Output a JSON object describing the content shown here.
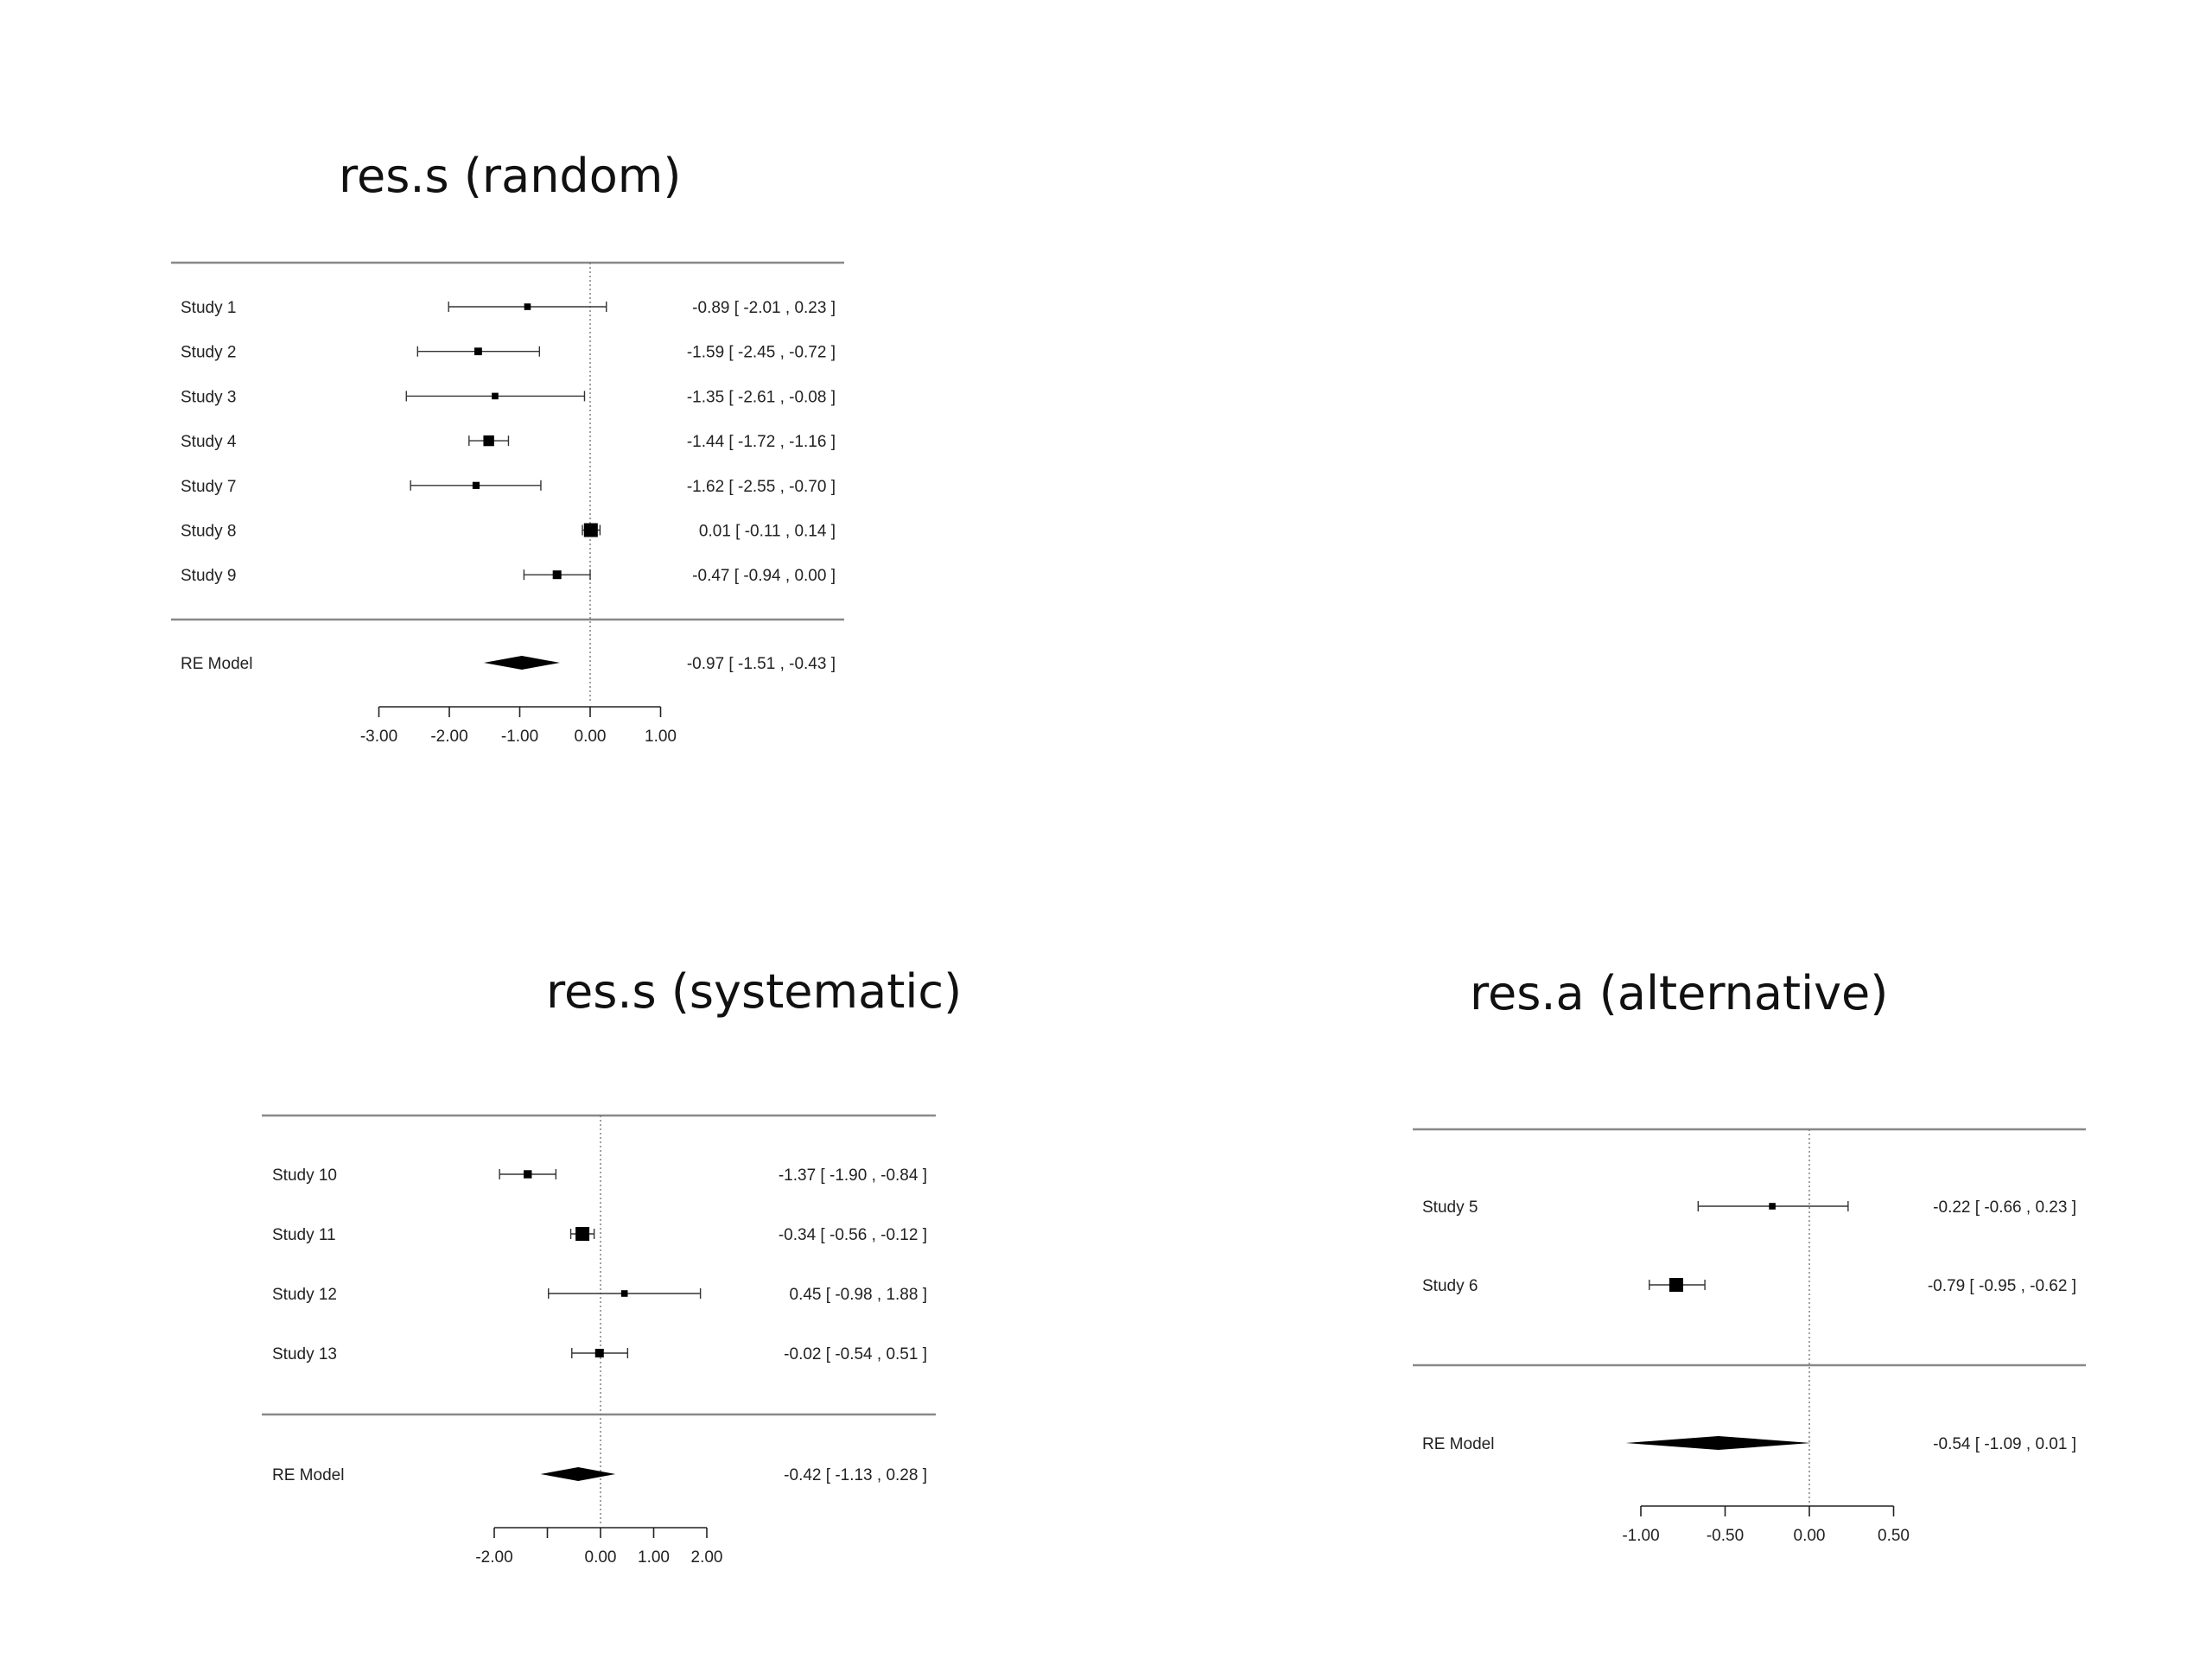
{
  "chart_data": [
    {
      "type": "forest",
      "title": "res.s (random)",
      "studies": [
        {
          "label": "Study  1",
          "est": -0.89,
          "lo": -2.01,
          "hi": 0.23,
          "ci_text": "-0.89 [ -2.01 ,  0.23 ]",
          "weight": 0.3
        },
        {
          "label": "Study  2",
          "est": -1.59,
          "lo": -2.45,
          "hi": -0.72,
          "ci_text": "-1.59 [ -2.45 , -0.72 ]",
          "weight": 0.4
        },
        {
          "label": "Study  3",
          "est": -1.35,
          "lo": -2.61,
          "hi": -0.08,
          "ci_text": "-1.35 [ -2.61 , -0.08 ]",
          "weight": 0.3
        },
        {
          "label": "Study  4",
          "est": -1.44,
          "lo": -1.72,
          "hi": -1.16,
          "ci_text": "-1.44 [ -1.72 , -1.16 ]",
          "weight": 0.7
        },
        {
          "label": "Study  7",
          "est": -1.62,
          "lo": -2.55,
          "hi": -0.7,
          "ci_text": "-1.62 [ -2.55 , -0.70 ]",
          "weight": 0.35
        },
        {
          "label": "Study  8",
          "est": 0.01,
          "lo": -0.11,
          "hi": 0.14,
          "ci_text": "0.01 [ -0.11 ,  0.14 ]",
          "weight": 1.0
        },
        {
          "label": "Study  9",
          "est": -0.47,
          "lo": -0.94,
          "hi": 0.0,
          "ci_text": "-0.47 [ -0.94 ,  0.00 ]",
          "weight": 0.5
        }
      ],
      "summary": {
        "label": "RE Model",
        "est": -0.97,
        "lo": -1.51,
        "hi": -0.43,
        "ci_text": "-0.97 [ -1.51 , -0.43 ]"
      },
      "ticks": [
        -3,
        -2,
        -1,
        0,
        1
      ],
      "tick_labels": [
        "-3.00",
        "-2.00",
        "-1.00",
        "0.00",
        "1.00"
      ],
      "reference_line": 0
    },
    {
      "type": "forest",
      "title": "res.s (systematic)",
      "studies": [
        {
          "label": "Study  10",
          "est": -1.37,
          "lo": -1.9,
          "hi": -0.84,
          "ci_text": "-1.37 [ -1.90 , -0.84 ]",
          "weight": 0.45
        },
        {
          "label": "Study  11",
          "est": -0.34,
          "lo": -0.56,
          "hi": -0.12,
          "ci_text": "-0.34 [ -0.56 , -0.12 ]",
          "weight": 1.0
        },
        {
          "label": "Study  12",
          "est": 0.45,
          "lo": -0.98,
          "hi": 1.88,
          "ci_text": "0.45 [ -0.98 ,  1.88 ]",
          "weight": 0.3
        },
        {
          "label": "Study  13",
          "est": -0.02,
          "lo": -0.54,
          "hi": 0.51,
          "ci_text": "-0.02 [ -0.54 ,  0.51 ]",
          "weight": 0.5
        }
      ],
      "summary": {
        "label": "RE Model",
        "est": -0.42,
        "lo": -1.13,
        "hi": 0.28,
        "ci_text": "-0.42 [ -1.13 ,  0.28 ]"
      },
      "ticks": [
        -2,
        -1,
        0,
        1,
        2
      ],
      "tick_labels": [
        "-2.00",
        "",
        "0.00",
        "1.00",
        "2.00"
      ],
      "reference_line": 0
    },
    {
      "type": "forest",
      "title": "res.a  (alternative)",
      "studies": [
        {
          "label": "Study  5",
          "est": -0.22,
          "lo": -0.66,
          "hi": 0.23,
          "ci_text": "-0.22 [ -0.66 ,  0.23 ]",
          "weight": 0.3
        },
        {
          "label": "Study  6",
          "est": -0.79,
          "lo": -0.95,
          "hi": -0.62,
          "ci_text": "-0.79 [ -0.95 , -0.62 ]",
          "weight": 1.0
        }
      ],
      "summary": {
        "label": "RE Model",
        "est": -0.54,
        "lo": -1.09,
        "hi": 0.01,
        "ci_text": "-0.54 [ -1.09 ,  0.01 ]"
      },
      "ticks": [
        -1,
        -0.5,
        0,
        0.5
      ],
      "tick_labels": [
        "-1.00",
        "-0.50",
        "0.00",
        "0.50"
      ],
      "reference_line": 0
    }
  ]
}
